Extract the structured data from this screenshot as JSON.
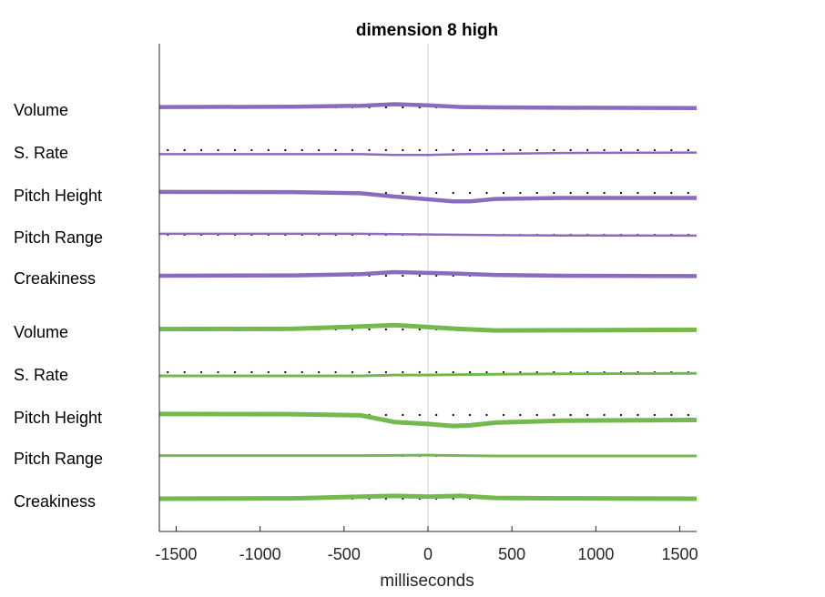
{
  "chart_data": {
    "type": "line",
    "title": "dimension  8 high",
    "xlabel": "milliseconds",
    "ylabel": "",
    "xlim": [
      -1600,
      1600
    ],
    "xticks": [
      -1500,
      -1000,
      -500,
      0,
      500,
      1000,
      1500
    ],
    "grid": false,
    "zero_line": true,
    "colors": {
      "group1": "#8a6bbd",
      "group2": "#74b84e",
      "dots": "#000000",
      "zero": "#cccccc",
      "axis": "#262626"
    },
    "groups": [
      {
        "color": "#8a6bbd",
        "series": [
          {
            "name": "Volume",
            "x": [
              -1600,
              -800,
              -400,
              -200,
              0,
              200,
              400,
              800,
              1600
            ],
            "values": [
              0.02,
              0.03,
              0.08,
              0.16,
              0.1,
              0.02,
              0.0,
              -0.02,
              -0.03
            ],
            "width": 4.5
          },
          {
            "name": "S. Rate",
            "x": [
              -1600,
              -400,
              -200,
              0,
              200,
              400,
              800,
              1600
            ],
            "values": [
              -0.2,
              -0.2,
              -0.24,
              -0.24,
              -0.2,
              -0.18,
              -0.14,
              -0.12
            ],
            "width": 2.5
          },
          {
            "name": "Pitch Height",
            "x": [
              -1600,
              -800,
              -400,
              -200,
              0,
              150,
              250,
              400,
              800,
              1600
            ],
            "values": [
              0.05,
              0.04,
              -0.02,
              -0.18,
              -0.32,
              -0.42,
              -0.42,
              -0.3,
              -0.25,
              -0.25
            ],
            "width": 4.5
          },
          {
            "name": "Pitch Range",
            "x": [
              -1600,
              -400,
              0,
              200,
              400,
              800,
              1600
            ],
            "values": [
              0.05,
              0.05,
              0.02,
              0.0,
              -0.02,
              -0.03,
              -0.04
            ],
            "width": 2.5
          },
          {
            "name": "Creakiness",
            "x": [
              -1600,
              -800,
              -400,
              -200,
              0,
              200,
              400,
              800,
              1600
            ],
            "values": [
              0.0,
              0.02,
              0.08,
              0.18,
              0.14,
              0.1,
              0.04,
              0.0,
              -0.02
            ],
            "width": 4.5
          }
        ]
      },
      {
        "color": "#74b84e",
        "series": [
          {
            "name": "Volume",
            "x": [
              -1600,
              -800,
              -400,
              -200,
              0,
              200,
              400,
              800,
              1600
            ],
            "values": [
              0.02,
              0.03,
              0.15,
              0.22,
              0.12,
              0.02,
              -0.05,
              -0.04,
              -0.02
            ],
            "width": 5
          },
          {
            "name": "S. Rate",
            "x": [
              -1600,
              -400,
              -200,
              0,
              200,
              400,
              800,
              1600
            ],
            "values": [
              -0.18,
              -0.18,
              -0.14,
              -0.14,
              -0.12,
              -0.1,
              -0.08,
              -0.06
            ],
            "width": 3
          },
          {
            "name": "Pitch Height",
            "x": [
              -1600,
              -800,
              -400,
              -200,
              0,
              150,
              250,
              400,
              800,
              1600
            ],
            "values": [
              0.05,
              0.04,
              -0.02,
              -0.35,
              -0.45,
              -0.55,
              -0.52,
              -0.38,
              -0.28,
              -0.25
            ],
            "width": 5
          },
          {
            "name": "Pitch Range",
            "x": [
              -1600,
              -400,
              0,
              200,
              400,
              800,
              1600
            ],
            "values": [
              0.02,
              0.02,
              0.04,
              0.02,
              0.0,
              0.0,
              0.0
            ],
            "width": 3
          },
          {
            "name": "Creakiness",
            "x": [
              -1600,
              -800,
              -400,
              -200,
              0,
              200,
              400,
              800,
              1600
            ],
            "values": [
              0.0,
              0.02,
              0.1,
              0.14,
              0.1,
              0.14,
              0.04,
              0.02,
              0.0
            ],
            "width": 5
          }
        ]
      }
    ]
  }
}
